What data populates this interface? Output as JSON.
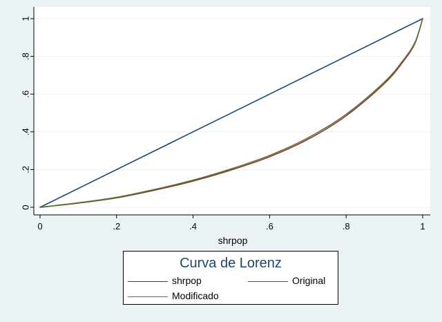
{
  "chart_data": {
    "type": "line",
    "xlabel": "shrpop",
    "ylabel": "",
    "xlim": [
      0,
      1
    ],
    "ylim": [
      0,
      1
    ],
    "x_ticks": [
      0,
      0.2,
      0.4,
      0.6,
      0.8,
      1
    ],
    "x_tick_labels": [
      "0",
      ".2",
      ".4",
      ".6",
      ".8",
      "1"
    ],
    "y_ticks": [
      0,
      0.2,
      0.4,
      0.6,
      0.8,
      1
    ],
    "y_tick_labels": [
      "0",
      ".2",
      ".4",
      ".6",
      ".8",
      "1"
    ],
    "grid": true,
    "legend_title": "Curva de Lorenz",
    "legend_position": "bottom",
    "series": [
      {
        "name": "shrpop",
        "color": "#1a476f",
        "x": [
          0,
          1
        ],
        "y": [
          0,
          1
        ]
      },
      {
        "name": "Original",
        "color": "#90353b",
        "x": [
          0,
          0.1,
          0.2,
          0.3,
          0.4,
          0.5,
          0.6,
          0.7,
          0.8,
          0.9,
          0.95,
          0.98,
          1
        ],
        "y": [
          0,
          0.022,
          0.05,
          0.091,
          0.139,
          0.198,
          0.268,
          0.36,
          0.485,
          0.656,
          0.775,
          0.87,
          1
        ]
      },
      {
        "name": "Modificado",
        "color": "#55752f",
        "x": [
          0,
          0.1,
          0.2,
          0.3,
          0.4,
          0.5,
          0.6,
          0.7,
          0.8,
          0.9,
          0.95,
          0.98,
          1
        ],
        "y": [
          0,
          0.024,
          0.053,
          0.095,
          0.144,
          0.204,
          0.275,
          0.368,
          0.493,
          0.664,
          0.782,
          0.875,
          1
        ]
      }
    ]
  }
}
